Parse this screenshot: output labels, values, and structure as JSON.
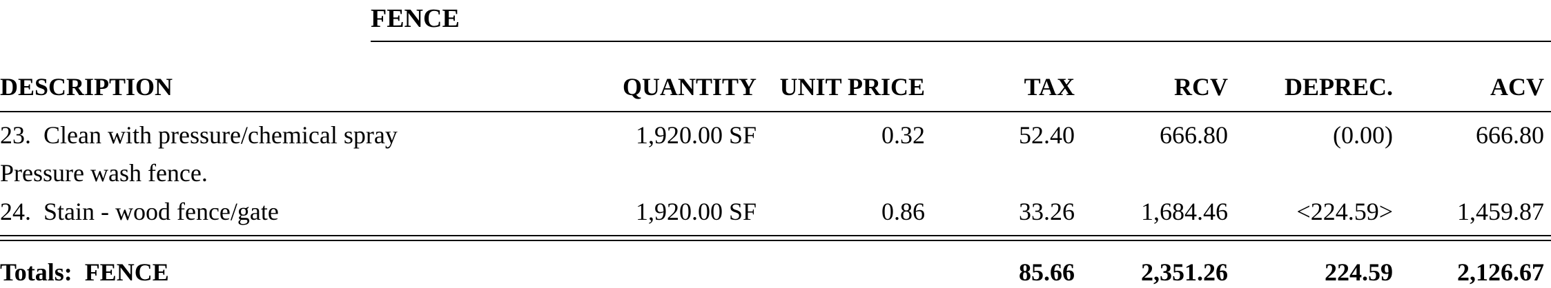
{
  "section": {
    "title": "FENCE"
  },
  "columns": {
    "description": "DESCRIPTION",
    "quantity": "QUANTITY",
    "unit_price": "UNIT PRICE",
    "tax": "TAX",
    "rcv": "RCV",
    "deprec": "DEPREC.",
    "acv": "ACV"
  },
  "items": [
    {
      "number": "23.",
      "description": "Clean with pressure/chemical spray",
      "quantity": "1,920.00 SF",
      "unit_price": "0.32",
      "tax": "52.40",
      "rcv": "666.80",
      "deprec": "(0.00)",
      "acv": "666.80",
      "note": "Pressure wash fence."
    },
    {
      "number": "24.",
      "description": "Stain - wood fence/gate",
      "quantity": "1,920.00 SF",
      "unit_price": "0.86",
      "tax": "33.26",
      "rcv": "1,684.46",
      "deprec": "<224.59>",
      "acv": "1,459.87"
    }
  ],
  "totals": {
    "label": "Totals:  FENCE",
    "tax": "85.66",
    "rcv": "2,351.26",
    "deprec": "224.59",
    "acv": "2,126.67"
  }
}
